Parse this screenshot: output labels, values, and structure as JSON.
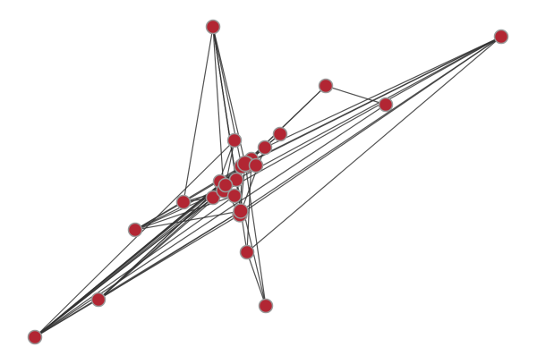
{
  "graph": {
    "node_fill": "#b22633",
    "node_stroke": "#999999",
    "edge_color": "#333333",
    "nodes": [
      {
        "id": "n1"
      },
      {
        "id": "n2"
      },
      {
        "id": "n3"
      },
      {
        "id": "n4"
      },
      {
        "id": "n5"
      },
      {
        "id": "n6"
      },
      {
        "id": "n7"
      },
      {
        "id": "n8"
      },
      {
        "id": "n9"
      },
      {
        "id": "n10"
      },
      {
        "id": "n11"
      },
      {
        "id": "n12"
      },
      {
        "id": "n13"
      },
      {
        "id": "n14"
      },
      {
        "id": "n15"
      },
      {
        "id": "n16"
      },
      {
        "id": "n17"
      },
      {
        "id": "n18"
      },
      {
        "id": "n19"
      },
      {
        "id": "n20"
      },
      {
        "id": "n21"
      },
      {
        "id": "n22"
      },
      {
        "id": "n23"
      },
      {
        "id": "n24"
      },
      {
        "id": "n25"
      },
      {
        "id": "n26"
      }
    ],
    "edges": [
      [
        "n2",
        "n15"
      ],
      [
        "n2",
        "n16"
      ],
      [
        "n2",
        "n23"
      ],
      [
        "n2",
        "n21"
      ],
      [
        "n2",
        "n20"
      ],
      [
        "n2",
        "n25"
      ],
      [
        "n2",
        "n7"
      ],
      [
        "n2",
        "n17"
      ],
      [
        "n10",
        "n23"
      ],
      [
        "n10",
        "n15"
      ],
      [
        "n10",
        "n21"
      ],
      [
        "n10",
        "n20"
      ],
      [
        "n10",
        "n25"
      ],
      [
        "n10",
        "n7"
      ],
      [
        "n10",
        "n22"
      ],
      [
        "n10",
        "n16"
      ],
      [
        "n10",
        "n24"
      ],
      [
        "n10",
        "n9"
      ],
      [
        "n10",
        "n5"
      ],
      [
        "n10",
        "n4"
      ],
      [
        "n10",
        "n8"
      ],
      [
        "n10",
        "n6"
      ],
      [
        "n1",
        "n13"
      ],
      [
        "n1",
        "n21"
      ],
      [
        "n1",
        "n16"
      ],
      [
        "n1",
        "n23"
      ],
      [
        "n1",
        "n19"
      ],
      [
        "n1",
        "n25"
      ],
      [
        "n1",
        "n17"
      ],
      [
        "n11",
        "n15"
      ],
      [
        "n11",
        "n23"
      ],
      [
        "n11",
        "n16"
      ],
      [
        "n11",
        "n21"
      ],
      [
        "n11",
        "n25"
      ],
      [
        "n7",
        "n20"
      ],
      [
        "n7",
        "n25"
      ],
      [
        "n7",
        "n16"
      ],
      [
        "n3",
        "n4"
      ],
      [
        "n3",
        "n25"
      ],
      [
        "n3",
        "n16"
      ],
      [
        "n5",
        "n16"
      ],
      [
        "n6",
        "n15"
      ],
      [
        "n6",
        "n24"
      ],
      [
        "n8",
        "n17"
      ],
      [
        "n9",
        "n16"
      ],
      [
        "n9",
        "n25"
      ],
      [
        "n9",
        "n13"
      ],
      [
        "n12",
        "n16"
      ],
      [
        "n12",
        "n13"
      ],
      [
        "n12",
        "n24"
      ],
      [
        "n12",
        "n23"
      ],
      [
        "n12",
        "n22"
      ],
      [
        "n12",
        "n19"
      ],
      [
        "n14",
        "n17"
      ],
      [
        "n14",
        "n21"
      ],
      [
        "n14",
        "n25"
      ],
      [
        "n18",
        "n19"
      ],
      [
        "n18",
        "n20"
      ],
      [
        "n18",
        "n21"
      ],
      [
        "n13",
        "n15"
      ],
      [
        "n16",
        "n23"
      ],
      [
        "n15",
        "n24"
      ],
      [
        "n22",
        "n24"
      ],
      [
        "n19",
        "n13"
      ],
      [
        "n20",
        "n25"
      ],
      [
        "n26",
        "n25"
      ],
      [
        "n26",
        "n16"
      ]
    ]
  }
}
